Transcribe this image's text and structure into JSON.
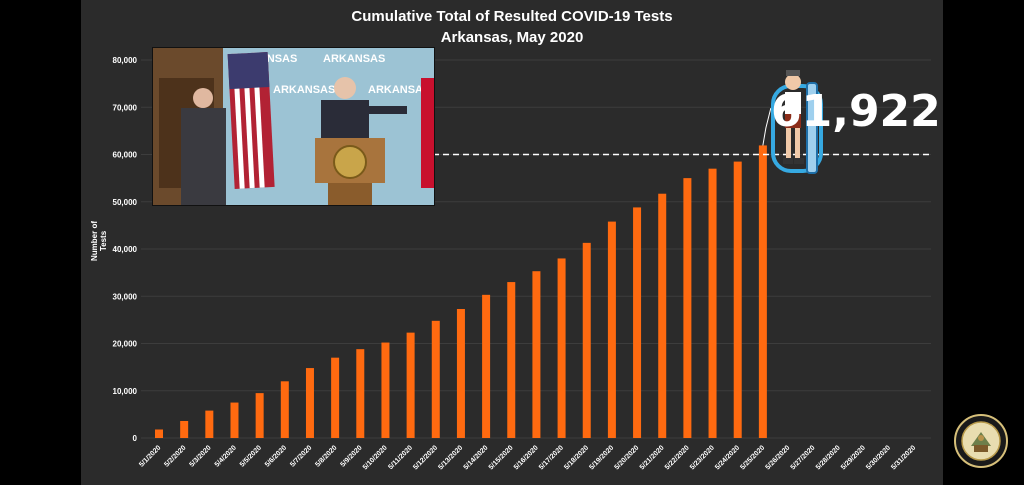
{
  "chart_data": {
    "type": "bar",
    "title": "Cumulative Total of Resulted COVID-19 Tests",
    "subtitle": "Arkansas, May 2020",
    "ylabel": "Number of Tests",
    "ylim": [
      0,
      80000
    ],
    "yticks": [
      "0",
      "10,000",
      "20,000",
      "30,000",
      "40,000",
      "50,000",
      "60,000",
      "70,000",
      "80,000"
    ],
    "categories": [
      "5/1/2020",
      "5/2/2020",
      "5/3/2020",
      "5/4/2020",
      "5/5/2020",
      "5/6/2020",
      "5/7/2020",
      "5/8/2020",
      "5/9/2020",
      "5/10/2020",
      "5/11/2020",
      "5/12/2020",
      "5/13/2020",
      "5/14/2020",
      "5/15/2020",
      "5/16/2020",
      "5/17/2020",
      "5/18/2020",
      "5/19/2020",
      "5/20/2020",
      "5/21/2020",
      "5/22/2020",
      "5/23/2020",
      "5/24/2020",
      "5/25/2020",
      "5/26/2020",
      "5/27/2020",
      "5/28/2020",
      "5/29/2020",
      "5/30/2020",
      "5/31/2020"
    ],
    "values": [
      1800,
      3600,
      5800,
      7500,
      9500,
      12000,
      14800,
      17000,
      18800,
      20200,
      22300,
      24800,
      27300,
      30300,
      33000,
      35300,
      38000,
      41300,
      45800,
      48800,
      51700,
      55000,
      57000,
      58500,
      61922,
      null,
      null,
      null,
      null,
      null,
      null
    ],
    "bar_color": "#ff6a10",
    "reference_line": 60000,
    "callout": "61,922",
    "grid": true
  },
  "inset": {
    "banner_text": "ARKANSAS",
    "banner_color": "#8fb7c9"
  },
  "colors": {
    "background": "#2b2b2b",
    "grid": "#3d3d3d",
    "text": "#ffffff"
  }
}
